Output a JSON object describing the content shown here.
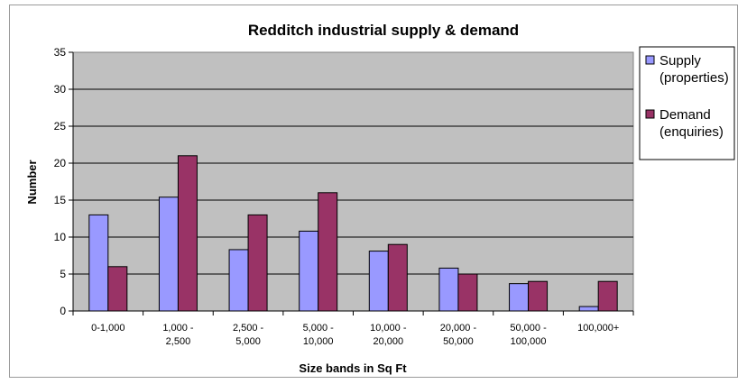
{
  "chart_data": {
    "type": "bar",
    "title": "Redditch industrial supply & demand",
    "xlabel": "Size bands in Sq Ft",
    "ylabel": "Number",
    "ylim": [
      0,
      35
    ],
    "yticks": [
      0,
      5,
      10,
      15,
      20,
      25,
      30,
      35
    ],
    "grid": true,
    "legend_position": "right",
    "categories": [
      [
        "0-1,000"
      ],
      [
        "1,000 -",
        "2,500"
      ],
      [
        "2,500 -",
        "5,000"
      ],
      [
        "5,000 -",
        "10,000"
      ],
      [
        "10,000 -",
        "20,000"
      ],
      [
        "20,000 -",
        "50,000"
      ],
      [
        "50,000 -",
        "100,000"
      ],
      [
        "100,000+"
      ]
    ],
    "series": [
      {
        "name": "Supply (properties)",
        "legend_lines": [
          "Supply",
          "(properties)"
        ],
        "color": "#9999ff",
        "values": [
          13,
          15.4,
          8.3,
          10.8,
          8.1,
          5.8,
          3.7,
          0.6
        ]
      },
      {
        "name": "Demand (enquiries)",
        "legend_lines": [
          "Demand",
          "(enquiries)"
        ],
        "color": "#993366",
        "values": [
          6,
          21,
          13,
          16,
          9,
          5,
          4,
          4
        ]
      }
    ],
    "plot_background": "#c0c0c0"
  }
}
